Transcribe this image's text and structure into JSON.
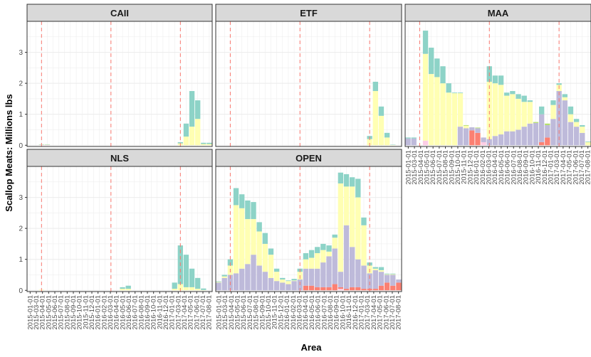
{
  "colors": {
    "mint": "#8dd3c7",
    "yellow": "#ffffb3",
    "lavender": "#bebada",
    "salmon": "#fb8072",
    "pink": "#fccde5",
    "green": "#b3de69",
    "strip": "#d9d9d9",
    "vline": "#f8766d"
  },
  "chart_data": {
    "type": "bar",
    "stacked": true,
    "faceted": true,
    "xlabel": "Area",
    "ylabel": "Scallop Meats: Millions lbs",
    "ylim": [
      0,
      4
    ],
    "yticks": [
      "0",
      "1",
      "2",
      "3"
    ],
    "grid": true,
    "legend": "none",
    "vlines": [
      "2015-03-01",
      "2016-03-01",
      "2017-03-01"
    ],
    "months": [
      "2015-01",
      "2015-02",
      "2015-03",
      "2015-04",
      "2015-05",
      "2015-06",
      "2015-07",
      "2015-08",
      "2015-09",
      "2015-10",
      "2015-11",
      "2015-12",
      "2016-01",
      "2016-02",
      "2016-03",
      "2016-04",
      "2016-05",
      "2016-06",
      "2016-07",
      "2016-08",
      "2016-09",
      "2016-10",
      "2016-11",
      "2016-12",
      "2017-01",
      "2017-02",
      "2017-03",
      "2017-04",
      "2017-05",
      "2017-06",
      "2017-07",
      "2017-08"
    ],
    "xtick_labels": [
      "2015-01-01",
      "2015-03-01",
      "2015-04-01",
      "2015-05-01",
      "2015-06-01",
      "2015-07-01",
      "2015-08-01",
      "2015-09-01",
      "2015-10-01",
      "2015-11-01",
      "2015-12-01",
      "2016-01-01",
      "2016-02-01",
      "2016-03-01",
      "2016-04-01",
      "2016-05-01",
      "2016-06-01",
      "2016-07-01",
      "2016-08-01",
      "2016-09-01",
      "2016-10-01",
      "2016-11-01",
      "2016-12-01",
      "2017-01-01",
      "2017-03-01",
      "2017-04-01",
      "2017-05-01",
      "2017-06-01",
      "2017-07-01",
      "2017-08-01"
    ],
    "stack_order": [
      "pink",
      "salmon",
      "lavender",
      "yellow",
      "mint"
    ],
    "panels": [
      {
        "name": "CAII",
        "bars": [
          {
            "month": "2015-03",
            "pink": 0.01,
            "yellow": 0.01,
            "mint": 0.01
          },
          {
            "month": "2015-04",
            "pink": 0.01,
            "yellow": 0.01,
            "mint": 0.01
          },
          {
            "month": "2017-03",
            "yellow": 0.06,
            "mint": 0.04
          },
          {
            "month": "2017-04",
            "yellow": 0.28,
            "mint": 0.42
          },
          {
            "month": "2017-05",
            "yellow": 0.6,
            "mint": 1.15
          },
          {
            "month": "2017-06",
            "yellow": 0.85,
            "mint": 0.6
          },
          {
            "month": "2017-07",
            "yellow": 0.04,
            "mint": 0.04
          },
          {
            "month": "2017-08",
            "yellow": 0.04,
            "mint": 0.04
          }
        ]
      },
      {
        "name": "ETF",
        "bars": [
          {
            "month": "2017-03",
            "yellow": 0.2,
            "mint": 0.1
          },
          {
            "month": "2017-04",
            "yellow": 1.75,
            "mint": 0.3
          },
          {
            "month": "2017-05",
            "yellow": 0.95,
            "mint": 0.3
          },
          {
            "month": "2017-06",
            "yellow": 0.25,
            "mint": 0.15
          },
          {
            "month": "2017-07",
            "yellow": 0.01,
            "mint": 0.01
          }
        ]
      },
      {
        "name": "MAA",
        "bars": [
          {
            "month": "2015-01",
            "lavender": 0.22,
            "mint": 0.03
          },
          {
            "month": "2015-02",
            "lavender": 0.22,
            "mint": 0.03
          },
          {
            "month": "2015-04",
            "pink": 0.15,
            "yellow": 2.8,
            "mint": 0.75
          },
          {
            "month": "2015-05",
            "yellow": 2.3,
            "mint": 0.85
          },
          {
            "month": "2015-06",
            "yellow": 2.2,
            "mint": 0.6
          },
          {
            "month": "2015-07",
            "yellow": 2.0,
            "mint": 0.55
          },
          {
            "month": "2015-08",
            "yellow": 1.7,
            "mint": 0.3
          },
          {
            "month": "2015-09",
            "yellow": 1.68,
            "mint": 0.02
          },
          {
            "month": "2015-10",
            "lavender": 0.6,
            "yellow": 1.08,
            "mint": 0.02
          },
          {
            "month": "2015-11",
            "lavender": 0.55,
            "yellow": 0.08,
            "green": 0.02
          },
          {
            "month": "2015-12",
            "salmon": 0.48,
            "lavender": 0.1
          },
          {
            "month": "2016-01",
            "salmon": 0.4,
            "lavender": 0.15,
            "green": 0.02
          },
          {
            "month": "2016-02",
            "pink": 0.1,
            "lavender": 0.15
          },
          {
            "month": "2016-03",
            "lavender": 0.2,
            "yellow": 1.85,
            "mint": 0.5
          },
          {
            "month": "2016-04",
            "lavender": 0.3,
            "yellow": 1.7,
            "mint": 0.25
          },
          {
            "month": "2016-05",
            "lavender": 0.35,
            "yellow": 1.6,
            "mint": 0.3
          },
          {
            "month": "2016-06",
            "lavender": 0.45,
            "yellow": 1.15,
            "mint": 0.1
          },
          {
            "month": "2016-07",
            "lavender": 0.45,
            "yellow": 1.2,
            "mint": 0.1
          },
          {
            "month": "2016-08",
            "lavender": 0.5,
            "yellow": 1.0,
            "mint": 0.15
          },
          {
            "month": "2016-09",
            "lavender": 0.6,
            "yellow": 0.8,
            "mint": 0.2
          },
          {
            "month": "2016-10",
            "lavender": 0.7,
            "yellow": 0.7,
            "mint": 0.05
          },
          {
            "month": "2016-11",
            "lavender": 0.72,
            "green": 0.03
          },
          {
            "month": "2016-12",
            "salmon": 0.1,
            "lavender": 0.9,
            "mint": 0.25
          },
          {
            "month": "2017-01",
            "salmon": 0.25,
            "lavender": 0.4,
            "green": 0.05
          },
          {
            "month": "2017-02",
            "lavender": 0.85,
            "yellow": 0.45,
            "mint": 0.15
          },
          {
            "month": "2017-03",
            "lavender": 1.75,
            "yellow": 0.2,
            "mint": 0.05
          },
          {
            "month": "2017-04",
            "lavender": 1.45,
            "yellow": 0.1,
            "mint": 0.1
          },
          {
            "month": "2017-05",
            "lavender": 0.75,
            "yellow": 0.25,
            "mint": 0.25
          },
          {
            "month": "2017-06",
            "lavender": 0.6,
            "yellow": 0.15,
            "mint": 0.1
          },
          {
            "month": "2017-07",
            "lavender": 0.4,
            "yellow": 0.2,
            "mint": 0.05
          },
          {
            "month": "2017-08",
            "yellow": 0.1,
            "mint": 0.02
          }
        ]
      },
      {
        "name": "NLS",
        "bars": [
          {
            "month": "2015-03",
            "yellow": 0.02
          },
          {
            "month": "2016-05",
            "yellow": 0.05,
            "mint": 0.05
          },
          {
            "month": "2016-06",
            "yellow": 0.05,
            "mint": 0.1
          },
          {
            "month": "2017-02",
            "yellow": 0.05,
            "mint": 0.2
          },
          {
            "month": "2017-03",
            "yellow": 0.2,
            "mint": 1.25
          },
          {
            "month": "2017-04",
            "yellow": 0.1,
            "mint": 1.05
          },
          {
            "month": "2017-05",
            "yellow": 0.1,
            "mint": 0.6
          },
          {
            "month": "2017-06",
            "yellow": 0.05,
            "mint": 0.35
          },
          {
            "month": "2017-07",
            "yellow": 0.01,
            "mint": 0.05
          }
        ]
      },
      {
        "name": "OPEN",
        "bars": [
          {
            "month": "2015-01",
            "lavender": 0.25,
            "yellow": 0.02,
            "mint": 0.02
          },
          {
            "month": "2015-02",
            "lavender": 0.4,
            "yellow": 0.05,
            "mint": 0.05
          },
          {
            "month": "2015-03",
            "lavender": 0.5,
            "yellow": 0.3,
            "mint": 0.2
          },
          {
            "month": "2015-04",
            "lavender": 0.55,
            "yellow": 2.2,
            "mint": 0.55
          },
          {
            "month": "2015-05",
            "lavender": 0.7,
            "yellow": 1.95,
            "mint": 0.45
          },
          {
            "month": "2015-06",
            "lavender": 0.85,
            "yellow": 1.45,
            "mint": 0.6
          },
          {
            "month": "2015-07",
            "lavender": 1.15,
            "yellow": 1.15,
            "mint": 0.55
          },
          {
            "month": "2015-08",
            "lavender": 0.8,
            "yellow": 1.1,
            "mint": 0.3
          },
          {
            "month": "2015-09",
            "lavender": 0.6,
            "yellow": 0.9,
            "mint": 0.35
          },
          {
            "month": "2015-10",
            "lavender": 0.4,
            "yellow": 0.75,
            "mint": 0.2
          },
          {
            "month": "2015-11",
            "lavender": 0.3,
            "yellow": 0.3,
            "mint": 0.1
          },
          {
            "month": "2015-12",
            "lavender": 0.25,
            "yellow": 0.1,
            "mint": 0.05
          },
          {
            "month": "2016-01",
            "lavender": 0.2,
            "yellow": 0.1,
            "mint": 0.02
          },
          {
            "month": "2016-02",
            "lavender": 0.3,
            "yellow": 0.02,
            "mint": 0.05
          },
          {
            "month": "2016-03",
            "lavender": 0.35,
            "yellow": 0.25,
            "mint": 0.1
          },
          {
            "month": "2016-04",
            "salmon": 0.15,
            "lavender": 0.55,
            "yellow": 0.3,
            "mint": 0.2
          },
          {
            "month": "2016-05",
            "salmon": 0.15,
            "lavender": 0.55,
            "yellow": 0.35,
            "mint": 0.25
          },
          {
            "month": "2016-06",
            "salmon": 0.1,
            "lavender": 0.6,
            "yellow": 0.5,
            "mint": 0.2
          },
          {
            "month": "2016-07",
            "salmon": 0.1,
            "lavender": 0.8,
            "yellow": 0.4,
            "mint": 0.2
          },
          {
            "month": "2016-08",
            "salmon": 0.1,
            "lavender": 1.0,
            "yellow": 0.15,
            "mint": 0.2
          },
          {
            "month": "2016-09",
            "salmon": 0.2,
            "lavender": 1.15,
            "yellow": 0.35,
            "mint": 0.1
          },
          {
            "month": "2016-10",
            "pink": 0.05,
            "salmon": 0.05,
            "lavender": 0.5,
            "yellow": 2.85,
            "mint": 0.35
          },
          {
            "month": "2016-11",
            "salmon": 0.05,
            "lavender": 2.05,
            "yellow": 1.25,
            "mint": 0.4
          },
          {
            "month": "2016-12",
            "salmon": 0.1,
            "lavender": 1.3,
            "yellow": 1.95,
            "mint": 0.3
          },
          {
            "month": "2017-01",
            "salmon": 0.1,
            "lavender": 0.9,
            "yellow": 2.0,
            "mint": 0.6
          },
          {
            "month": "2017-02",
            "salmon": 0.05,
            "lavender": 0.75,
            "yellow": 1.3,
            "mint": 0.25
          },
          {
            "month": "2017-03",
            "salmon": 0.05,
            "lavender": 0.5,
            "yellow": 0.25,
            "mint": 0.1
          },
          {
            "month": "2017-04",
            "salmon": 0.05,
            "lavender": 0.6,
            "yellow": 0.05,
            "mint": 0.05
          },
          {
            "month": "2017-05",
            "salmon": 0.15,
            "lavender": 0.45,
            "yellow": 0.05,
            "mint": 0.1
          },
          {
            "month": "2017-06",
            "salmon": 0.25,
            "lavender": 0.25,
            "yellow": 0.02,
            "mint": 0.02
          },
          {
            "month": "2017-07",
            "salmon": 0.15,
            "lavender": 0.35,
            "yellow": 0.02,
            "mint": 0.02
          },
          {
            "month": "2017-08",
            "salmon": 0.25,
            "lavender": 0.1
          }
        ]
      }
    ]
  }
}
